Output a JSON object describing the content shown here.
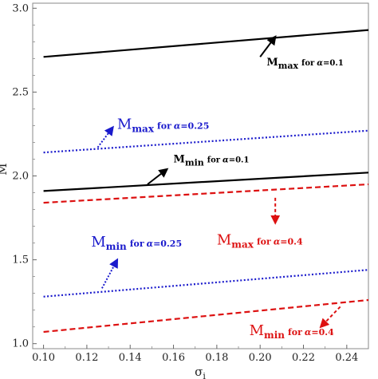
{
  "chart_data": {
    "type": "line",
    "xlabel": "σ",
    "xlabel_sub": "i",
    "ylabel": "M",
    "xlim": [
      0.095,
      0.25
    ],
    "ylim": [
      0.97,
      3.03
    ],
    "x_ticks": [
      0.1,
      0.12,
      0.14,
      0.16,
      0.18,
      0.2,
      0.22,
      0.24
    ],
    "x_tick_labels": [
      "0.10",
      "0.12",
      "0.14",
      "0.16",
      "0.18",
      "0.20",
      "0.22",
      "0.24"
    ],
    "y_ticks": [
      1.0,
      1.5,
      2.0,
      2.5,
      3.0
    ],
    "y_tick_labels": [
      "1.0",
      "1.5",
      "2.0",
      "2.5",
      "3.0"
    ],
    "grid": false,
    "series": [
      {
        "id": "mmax-01",
        "x": [
          0.1,
          0.25
        ],
        "y": [
          2.71,
          2.87
        ],
        "color": "#000000",
        "style": "solid"
      },
      {
        "id": "mmax-025",
        "x": [
          0.1,
          0.25
        ],
        "y": [
          2.14,
          2.27
        ],
        "color": "#1a1acc",
        "style": "dotted"
      },
      {
        "id": "mmin-01",
        "x": [
          0.1,
          0.25
        ],
        "y": [
          1.91,
          2.02
        ],
        "color": "#000000",
        "style": "solid"
      },
      {
        "id": "mmax-04",
        "x": [
          0.1,
          0.25
        ],
        "y": [
          1.84,
          1.95
        ],
        "color": "#dd1111",
        "style": "dashed"
      },
      {
        "id": "mmin-025",
        "x": [
          0.1,
          0.25
        ],
        "y": [
          1.28,
          1.44
        ],
        "color": "#1a1acc",
        "style": "dotted"
      },
      {
        "id": "mmin-04",
        "x": [
          0.1,
          0.25
        ],
        "y": [
          1.07,
          1.26
        ],
        "color": "#dd1111",
        "style": "dashed"
      }
    ],
    "annotations": [
      {
        "id": "ann-mmax-01",
        "main": "M",
        "sub": "max",
        "suffix": "for",
        "alpha": "α",
        "value": "=0.1",
        "color": "#000000",
        "arrow_style": "solid",
        "main_size": 13,
        "small_size": 10,
        "text_at": [
          0.203,
          2.66
        ],
        "arrow_from": [
          0.2,
          2.71
        ],
        "arrow_to": [
          0.207,
          2.83
        ]
      },
      {
        "id": "ann-mmax-025",
        "main": "M",
        "sub": "max",
        "suffix": "for",
        "alpha": "α",
        "value": "=0.25",
        "color": "#1a1acc",
        "arrow_style": "dotted",
        "main_size": 18,
        "small_size": 11,
        "text_at": [
          0.134,
          2.28
        ],
        "arrow_from": [
          0.125,
          2.17
        ],
        "arrow_to": [
          0.132,
          2.29
        ]
      },
      {
        "id": "ann-mmin-01",
        "main": "M",
        "sub": "min",
        "suffix": "for",
        "alpha": "α",
        "value": "=0.1",
        "color": "#000000",
        "arrow_style": "solid",
        "main_size": 13,
        "small_size": 10,
        "text_at": [
          0.16,
          2.08
        ],
        "arrow_from": [
          0.148,
          1.95
        ],
        "arrow_to": [
          0.157,
          2.04
        ]
      },
      {
        "id": "ann-mmax-04",
        "main": "M",
        "sub": "max",
        "suffix": "for",
        "alpha": "α",
        "value": "=0.4",
        "color": "#dd1111",
        "arrow_style": "dashed",
        "main_size": 18,
        "small_size": 11,
        "text_at": [
          0.18,
          1.59
        ],
        "arrow_from": [
          0.207,
          1.87
        ],
        "arrow_to": [
          0.207,
          1.72
        ]
      },
      {
        "id": "ann-mmin-025",
        "main": "M",
        "sub": "min",
        "suffix": "for",
        "alpha": "α",
        "value": "=0.25",
        "color": "#1a1acc",
        "arrow_style": "dotted",
        "main_size": 18,
        "small_size": 11,
        "text_at": [
          0.122,
          1.58
        ],
        "arrow_from": [
          0.127,
          1.33
        ],
        "arrow_to": [
          0.134,
          1.5
        ]
      },
      {
        "id": "ann-mmin-04",
        "main": "M",
        "sub": "min",
        "suffix": "for",
        "alpha": "α",
        "value": "=0.4",
        "color": "#dd1111",
        "arrow_style": "dashed",
        "main_size": 18,
        "small_size": 11,
        "text_at": [
          0.195,
          1.05
        ],
        "arrow_from": [
          0.237,
          1.22
        ],
        "arrow_to": [
          0.228,
          1.1
        ]
      }
    ]
  }
}
